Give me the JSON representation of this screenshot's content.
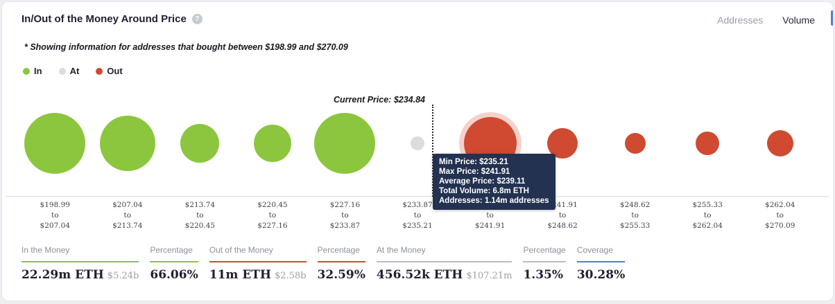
{
  "header": {
    "title": "In/Out of the Money Around Price",
    "help_glyph": "?",
    "tabs": [
      {
        "label": "Addresses",
        "active": false
      },
      {
        "label": "Volume",
        "active": true
      }
    ]
  },
  "note": "* Showing information for addresses that bought between $198.99 and $270.09",
  "legend": [
    {
      "label": "In",
      "color": "#8cc63e"
    },
    {
      "label": "At",
      "color": "#dcdcdc"
    },
    {
      "label": "Out",
      "color": "#cf4a30"
    }
  ],
  "chart_data": {
    "type": "bubble",
    "title": "In/Out of the Money Around Price (Volume)",
    "x_axis": "price ranges (USD)",
    "current_price": "$234.84",
    "current_price_label": "Current Price: $234.84",
    "range_separator": "to",
    "colors": {
      "in": "#8cc63e",
      "at": "#dcdcdc",
      "out": "#cf4a30"
    },
    "buckets": [
      {
        "from": "$198.99",
        "to": "$207.04",
        "status": "in",
        "radius": 44
      },
      {
        "from": "$207.04",
        "to": "$213.74",
        "status": "in",
        "radius": 40
      },
      {
        "from": "$213.74",
        "to": "$220.45",
        "status": "in",
        "radius": 28
      },
      {
        "from": "$220.45",
        "to": "$227.16",
        "status": "in",
        "radius": 27
      },
      {
        "from": "$227.16",
        "to": "$233.87",
        "status": "in",
        "radius": 44
      },
      {
        "from": "$233.87",
        "to": "$235.21",
        "status": "at",
        "radius": 10
      },
      {
        "from": "$235.21",
        "to": "$241.91",
        "status": "out",
        "radius": 38,
        "highlighted": true,
        "min_price": "$235.21",
        "max_price": "$241.91",
        "average_price": "$239.11",
        "total_volume": "6.8m ETH",
        "addresses": "1.14m addresses"
      },
      {
        "from": "$241.91",
        "to": "$248.62",
        "status": "out",
        "radius": 22
      },
      {
        "from": "$248.62",
        "to": "$255.33",
        "status": "out",
        "radius": 15
      },
      {
        "from": "$255.33",
        "to": "$262.04",
        "status": "out",
        "radius": 17
      },
      {
        "from": "$262.04",
        "to": "$270.09",
        "status": "out",
        "radius": 19
      }
    ]
  },
  "tooltip": {
    "rows": [
      "Min Price: $235.21",
      "Max Price: $241.91",
      "Average Price: $239.11",
      "Total Volume: 6.8m ETH",
      "Addresses: 1.14m addresses"
    ]
  },
  "stats": [
    {
      "label": "In the Money",
      "value": "22.29m ETH",
      "sub": "$5.24b",
      "accent": "#8cc63e"
    },
    {
      "label": "Percentage",
      "value": "66.06%",
      "sub": "",
      "accent": "#8cc63e"
    },
    {
      "label": "Out of the Money",
      "value": "11m ETH",
      "sub": "$2.58b",
      "accent": "#cf4a30"
    },
    {
      "label": "Percentage",
      "value": "32.59%",
      "sub": "",
      "accent": "#cf4a30"
    },
    {
      "label": "At the Money",
      "value": "456.52k ETH",
      "sub": "$107.21m",
      "accent": "#b9bec6"
    },
    {
      "label": "Percentage",
      "value": "1.35%",
      "sub": "",
      "accent": "#b9bec6"
    },
    {
      "label": "Coverage",
      "value": "30.28%",
      "sub": "",
      "accent": "#4b7be5"
    }
  ],
  "colors": {
    "tooltip_bg": "#233250",
    "tab_accent": "#4b7be5",
    "axis_line": "#d8dbdf"
  }
}
